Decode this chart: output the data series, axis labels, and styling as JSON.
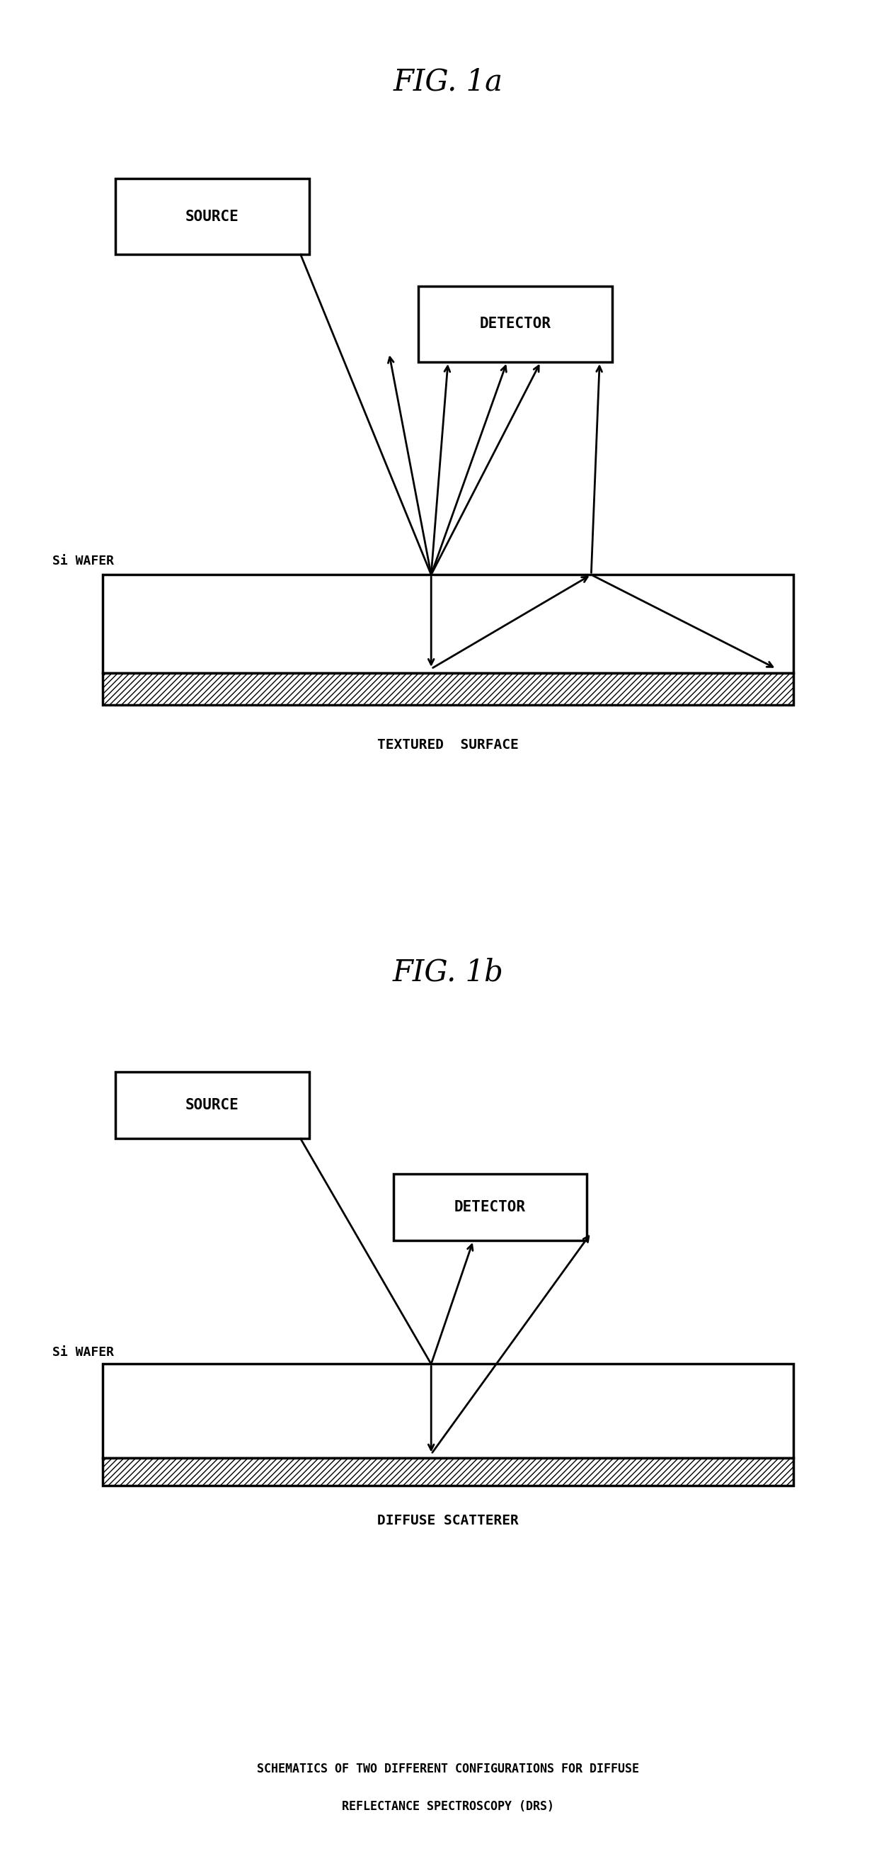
{
  "fig_width": 12.66,
  "fig_height": 26.34,
  "bg_color": "#ffffff",
  "title_1a": "FIG. 1a",
  "title_1b": "FIG. 1b",
  "caption_line1": "SCHEMATICS OF TWO DIFFERENT CONFIGURATIONS FOR DIFFUSE",
  "caption_line2": "REFLECTANCE SPECTROSCOPY (DRS)",
  "label_source": "SOURCE",
  "label_detector": "DETECTOR",
  "label_si_wafer": "Si WAFER",
  "label_textured": "TEXTURED  SURFACE",
  "label_diffuse": "DIFFUSE SCATTERER"
}
